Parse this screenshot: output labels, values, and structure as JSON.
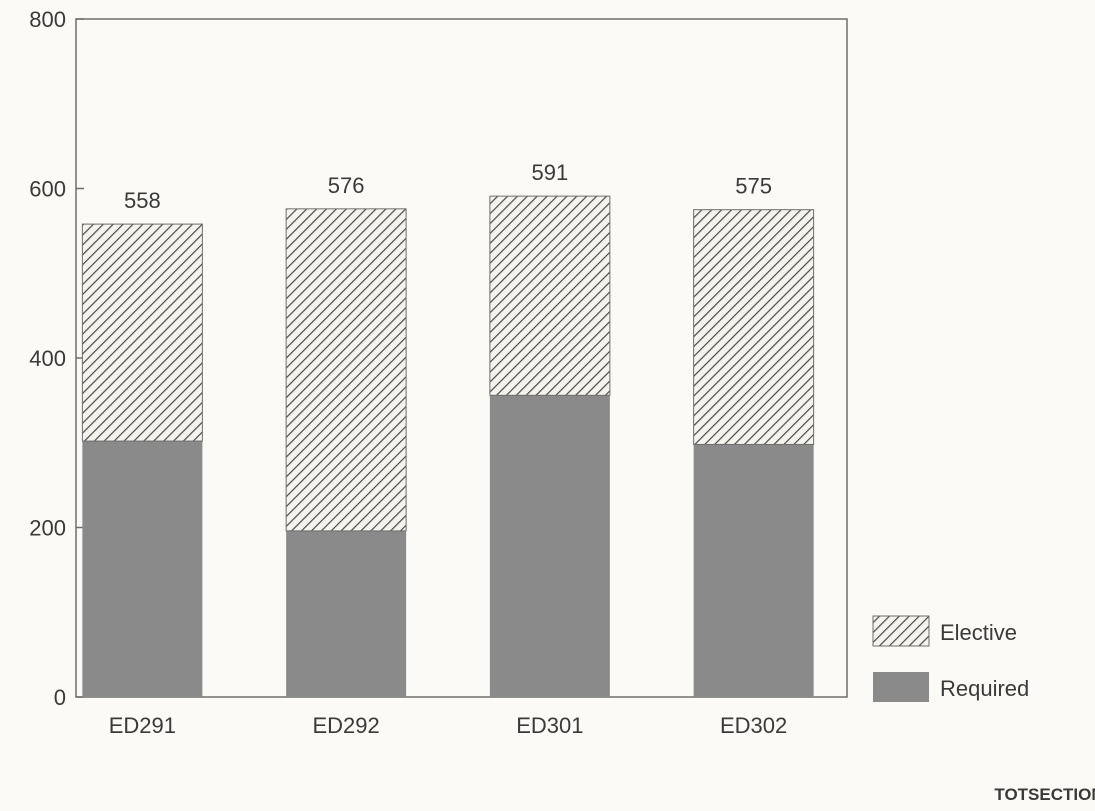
{
  "chart_data": {
    "type": "bar",
    "stacked": true,
    "categories": [
      "ED291",
      "ED292",
      "ED301",
      "ED302"
    ],
    "series": [
      {
        "name": "Required",
        "values": [
          302,
          196,
          356,
          298
        ],
        "color": "#8a8a8a",
        "pattern": "solid"
      },
      {
        "name": "Elective",
        "values": [
          256,
          380,
          235,
          277
        ],
        "color": "#8a8a8a",
        "pattern": "diagonal-hatch"
      }
    ],
    "totals": [
      558,
      576,
      591,
      575
    ],
    "total_labels": [
      "558",
      "576",
      "591",
      "575"
    ],
    "yticks": [
      0,
      200,
      400,
      600,
      800
    ],
    "ytick_labels": [
      "0",
      "200",
      "400",
      "600",
      "800"
    ],
    "ylim": [
      0,
      800
    ],
    "title": "",
    "xlabel": "",
    "ylabel": "",
    "legend_position": "bottom-right",
    "grid": false
  },
  "footer": {
    "label": "TOTSECTION"
  }
}
